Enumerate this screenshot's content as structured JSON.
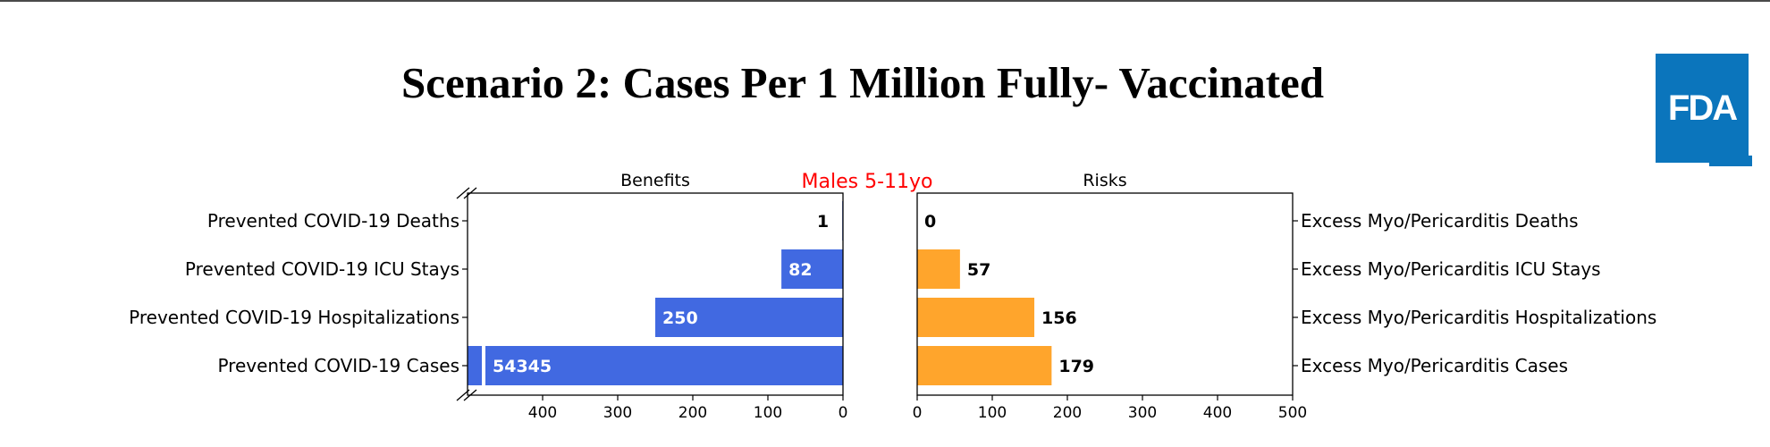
{
  "slide_title": "Scenario 2: Cases Per 1 Million Fully- Vaccinated",
  "logo_text": "FDA",
  "colors": {
    "benefit": "#4169e1",
    "risk": "#ffa52c",
    "group_label": "#ff0000",
    "logo": "#0b75bc"
  },
  "chart_data": {
    "type": "bar",
    "orientation": "horizontal",
    "group_label": "Males 5-11yo",
    "benefits": {
      "title": "Benefits",
      "categories": [
        "Prevented COVID-19 Deaths",
        "Prevented COVID-19 ICU Stays",
        "Prevented COVID-19 Hospitalizations",
        "Prevented COVID-19 Cases"
      ],
      "values": [
        1,
        82,
        250,
        54345
      ],
      "value_labels": [
        "1",
        "82",
        "250",
        "54345"
      ],
      "xlim": [
        500,
        0
      ],
      "xticks": [
        400,
        300,
        200,
        100,
        0
      ],
      "axis_break": true
    },
    "risks": {
      "title": "Risks",
      "categories": [
        "Excess Myo/Pericarditis Deaths",
        "Excess Myo/Pericarditis ICU Stays",
        "Excess Myo/Pericarditis Hospitalizations",
        "Excess Myo/Pericarditis Cases"
      ],
      "values": [
        0,
        57,
        156,
        179
      ],
      "value_labels": [
        "0",
        "57",
        "156",
        "179"
      ],
      "xlim": [
        0,
        500
      ],
      "xticks": [
        0,
        100,
        200,
        300,
        400,
        500
      ]
    }
  }
}
